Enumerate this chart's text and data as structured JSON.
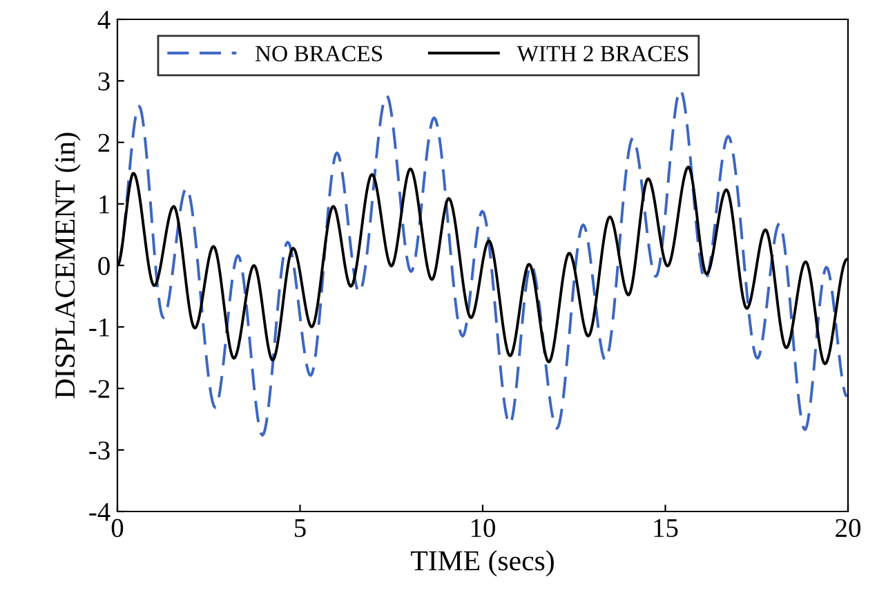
{
  "chart_data": {
    "type": "line",
    "xlabel": "TIME (secs)",
    "ylabel": "DISPLACEMENT (in)",
    "xlim": [
      0,
      20
    ],
    "ylim": [
      -4,
      4
    ],
    "xticks": [
      0,
      5,
      10,
      15,
      20
    ],
    "yticks": [
      -4,
      -3,
      -2,
      -1,
      0,
      1,
      2,
      3,
      4
    ],
    "grid": false,
    "legend": "top left",
    "marker": "none",
    "series": [
      {
        "name": "NO BRACES",
        "color": "#3b66c2",
        "line_style": "dashed",
        "x": [
          0,
          0.59,
          1.26,
          1.89,
          2.68,
          3.3,
          3.97,
          4.66,
          5.29,
          6.01,
          6.62,
          7.37,
          8.04,
          8.67,
          9.45,
          9.99,
          10.74,
          11.32,
          12.03,
          12.75,
          13.36,
          14.11,
          14.74,
          15.41,
          16.09,
          16.72,
          17.52,
          18.12,
          18.82,
          19.41,
          19.97
        ],
        "values": [
          0,
          2.59,
          -0.85,
          1.26,
          -2.31,
          0.16,
          -2.76,
          0.38,
          -1.79,
          1.83,
          -0.44,
          2.76,
          -0.1,
          2.4,
          -1.15,
          0.88,
          -2.58,
          0.01,
          -2.65,
          0.66,
          -1.54,
          2.07,
          -0.18,
          2.85,
          -0.24,
          2.1,
          -1.51,
          0.68,
          -2.67,
          -0.03,
          -2.13
        ]
      },
      {
        "name": "WITH 2 BRACES",
        "color": "#000000",
        "line_style": "solid",
        "x": [
          0,
          0.44,
          1.01,
          1.54,
          2.12,
          2.63,
          3.19,
          3.74,
          4.25,
          4.81,
          5.32,
          5.91,
          6.39,
          6.97,
          7.5,
          8.02,
          8.61,
          9.07,
          9.68,
          10.17,
          10.75,
          11.27,
          11.81,
          12.37,
          12.89,
          13.48,
          13.99,
          14.53,
          15.06,
          15.63,
          16.13,
          16.67,
          17.23,
          17.74,
          18.31,
          18.84,
          19.37,
          19.97
        ],
        "values": [
          0,
          1.5,
          -0.33,
          0.96,
          -1.02,
          0.31,
          -1.51,
          0,
          -1.54,
          0.28,
          -1,
          0.96,
          -0.34,
          1.48,
          -0.01,
          1.57,
          -0.23,
          1.09,
          -0.85,
          0.4,
          -1.47,
          0.02,
          -1.57,
          0.2,
          -1.15,
          0.79,
          -0.48,
          1.41,
          -0.01,
          1.6,
          -0.14,
          1.23,
          -0.7,
          0.58,
          -1.34,
          0.06,
          -1.6,
          0.1
        ]
      }
    ]
  }
}
